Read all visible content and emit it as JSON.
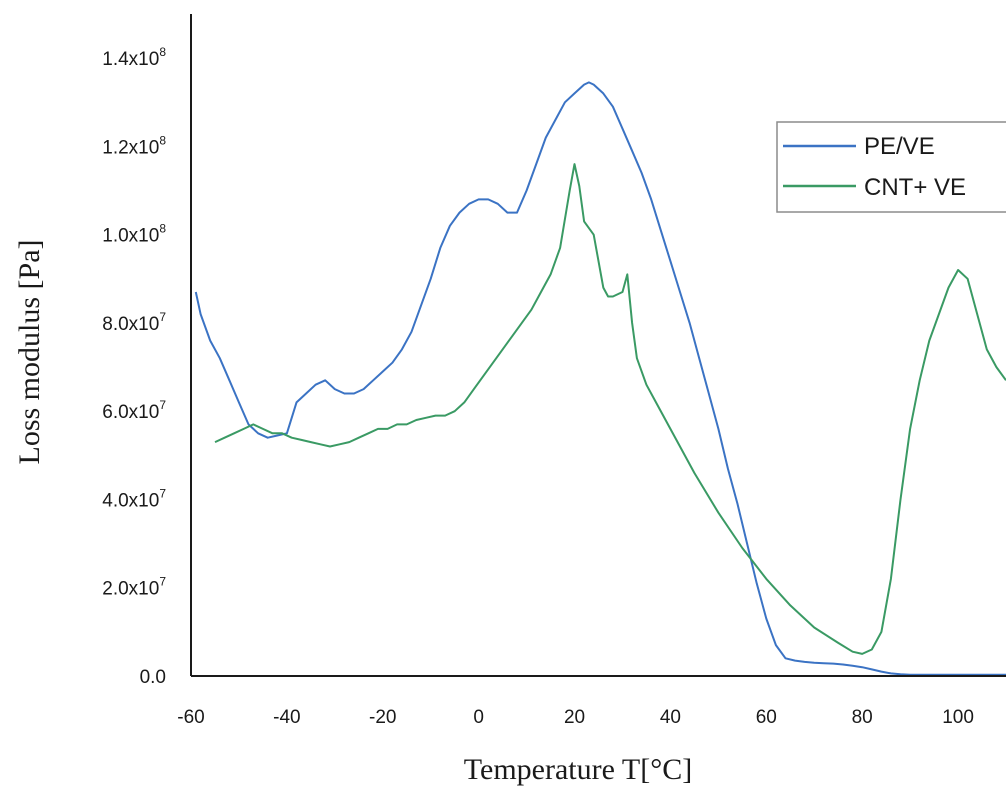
{
  "chart_data": {
    "type": "line",
    "title": "",
    "xlabel": "Temperature T[°C]",
    "ylabel": "Loss modulus [Pa]",
    "xlim": [
      -60,
      110
    ],
    "ylim": [
      0,
      150000000
    ],
    "grid": false,
    "legend_position": "top-right",
    "x_ticks": [
      -60,
      -40,
      -20,
      0,
      20,
      40,
      60,
      80,
      100
    ],
    "y_ticks": [
      {
        "value": 0,
        "mantissa": "0.0",
        "exp": ""
      },
      {
        "value": 20000000,
        "mantissa": "2.0x10",
        "exp": "7"
      },
      {
        "value": 40000000,
        "mantissa": "4.0x10",
        "exp": "7"
      },
      {
        "value": 60000000,
        "mantissa": "6.0x10",
        "exp": "7"
      },
      {
        "value": 80000000,
        "mantissa": "8.0x10",
        "exp": "7"
      },
      {
        "value": 100000000,
        "mantissa": "1.0x10",
        "exp": "8"
      },
      {
        "value": 120000000,
        "mantissa": "1.2x10",
        "exp": "8"
      },
      {
        "value": 140000000,
        "mantissa": "1.4x10",
        "exp": "8"
      }
    ],
    "series": [
      {
        "name": "PE/VE",
        "color": "#3b73c4",
        "x": [
          -59,
          -58,
          -56,
          -54,
          -52,
          -50,
          -48,
          -46,
          -44,
          -42,
          -40,
          -38,
          -36,
          -34,
          -32,
          -30,
          -28,
          -26,
          -24,
          -22,
          -20,
          -18,
          -16,
          -14,
          -12,
          -10,
          -8,
          -6,
          -4,
          -2,
          0,
          2,
          4,
          6,
          8,
          10,
          12,
          14,
          16,
          18,
          20,
          22,
          23,
          24,
          26,
          28,
          30,
          32,
          34,
          36,
          38,
          40,
          42,
          44,
          46,
          48,
          50,
          52,
          54,
          56,
          58,
          60,
          62,
          64,
          66,
          68,
          70,
          72,
          74,
          76,
          78,
          80,
          82,
          84,
          86,
          88,
          90,
          92,
          95,
          100,
          105,
          110
        ],
        "y": [
          87000000,
          82000000,
          76000000,
          72000000,
          67000000,
          62000000,
          57000000,
          55000000,
          54000000,
          54500000,
          55000000,
          62000000,
          64000000,
          66000000,
          67000000,
          65000000,
          64000000,
          64000000,
          65000000,
          67000000,
          69000000,
          71000000,
          74000000,
          78000000,
          84000000,
          90000000,
          97000000,
          102000000,
          105000000,
          107000000,
          108000000,
          108000000,
          107000000,
          105000000,
          105000000,
          110000000,
          116000000,
          122000000,
          126000000,
          130000000,
          132000000,
          134000000,
          134500000,
          134000000,
          132000000,
          129000000,
          124000000,
          119000000,
          114000000,
          108000000,
          101000000,
          94000000,
          87000000,
          80000000,
          72000000,
          64000000,
          56000000,
          47000000,
          39000000,
          30000000,
          21000000,
          13000000,
          7000000,
          4000000,
          3500000,
          3200000,
          3000000,
          2900000,
          2800000,
          2600000,
          2300000,
          2000000,
          1500000,
          1000000,
          600000,
          400000,
          300000,
          300000,
          300000,
          300000,
          300000,
          300000
        ]
      },
      {
        "name": "CNT+ VE",
        "color": "#3a9a64",
        "x": [
          -55,
          -53,
          -51,
          -49,
          -47,
          -45,
          -43,
          -41,
          -39,
          -37,
          -35,
          -33,
          -31,
          -29,
          -27,
          -25,
          -23,
          -21,
          -19,
          -17,
          -15,
          -13,
          -11,
          -9,
          -7,
          -5,
          -3,
          -1,
          1,
          3,
          5,
          7,
          9,
          11,
          13,
          15,
          17,
          19,
          20,
          21,
          22,
          24,
          26,
          27,
          28,
          30,
          31,
          32,
          33,
          35,
          37,
          40,
          45,
          50,
          55,
          60,
          65,
          70,
          75,
          78,
          80,
          82,
          84,
          86,
          88,
          90,
          92,
          94,
          96,
          98,
          100,
          102,
          104,
          106,
          108,
          110
        ],
        "y": [
          53000000,
          54000000,
          55000000,
          56000000,
          57000000,
          56000000,
          55000000,
          55000000,
          54000000,
          53500000,
          53000000,
          52500000,
          52000000,
          52500000,
          53000000,
          54000000,
          55000000,
          56000000,
          56000000,
          57000000,
          57000000,
          58000000,
          58500000,
          59000000,
          59000000,
          60000000,
          62000000,
          65000000,
          68000000,
          71000000,
          74000000,
          77000000,
          80000000,
          83000000,
          87000000,
          91000000,
          97000000,
          110000000,
          116000000,
          111000000,
          103000000,
          100000000,
          88000000,
          86000000,
          86000000,
          87000000,
          91000000,
          80000000,
          72000000,
          66000000,
          62000000,
          56000000,
          46000000,
          37000000,
          29000000,
          22000000,
          16000000,
          11000000,
          7500000,
          5500000,
          5000000,
          6000000,
          10000000,
          22000000,
          40000000,
          56000000,
          67000000,
          76000000,
          82000000,
          88000000,
          92000000,
          90000000,
          82000000,
          74000000,
          70000000,
          67000000
        ]
      }
    ]
  }
}
